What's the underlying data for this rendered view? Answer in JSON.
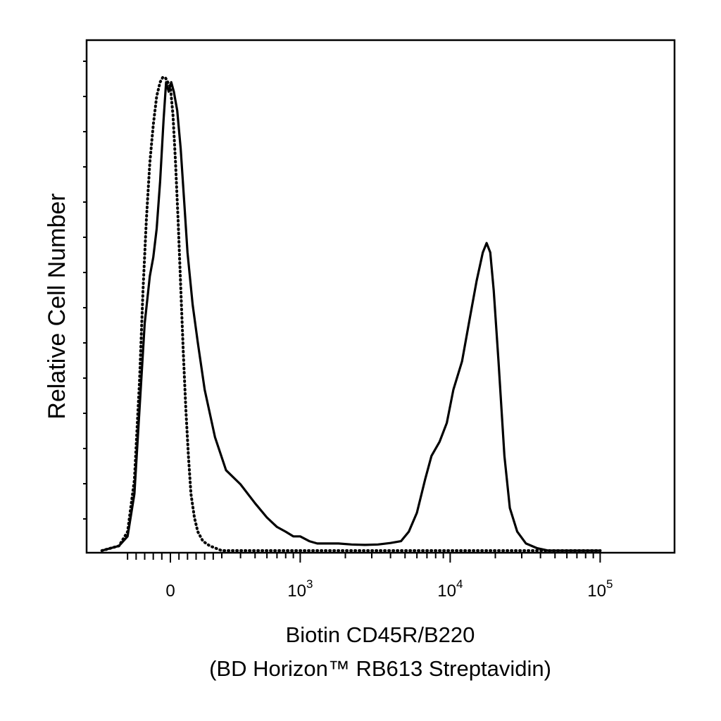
{
  "chart_data": {
    "type": "line",
    "ylabel": "Relative Cell Number",
    "xlabel_line1": "Biotin CD45R/B220",
    "xlabel_line2": "(BD Horizon™ RB613 Streptavidin)",
    "x_scale": "biexponential",
    "x_tick_labels": [
      {
        "base": "0",
        "exp": ""
      },
      {
        "base": "10",
        "exp": "3"
      },
      {
        "base": "10",
        "exp": "4"
      },
      {
        "base": "10",
        "exp": "5"
      }
    ],
    "ylim": [
      0,
      100
    ],
    "grid": false,
    "legend": "none",
    "series": [
      {
        "style": "dashed",
        "points": [
          [
            -400,
            0
          ],
          [
            -300,
            1
          ],
          [
            -250,
            4
          ],
          [
            -210,
            15
          ],
          [
            -180,
            36
          ],
          [
            -160,
            55
          ],
          [
            -140,
            70
          ],
          [
            -120,
            82
          ],
          [
            -100,
            90
          ],
          [
            -80,
            96
          ],
          [
            -60,
            99
          ],
          [
            -45,
            100
          ],
          [
            -30,
            100
          ],
          [
            -15,
            99
          ],
          [
            0,
            98
          ],
          [
            15,
            92
          ],
          [
            30,
            82
          ],
          [
            45,
            70
          ],
          [
            60,
            56
          ],
          [
            75,
            42
          ],
          [
            90,
            30
          ],
          [
            105,
            20
          ],
          [
            120,
            12
          ],
          [
            140,
            7
          ],
          [
            160,
            4
          ],
          [
            190,
            2
          ],
          [
            230,
            1
          ],
          [
            300,
            0
          ],
          [
            100000,
            0
          ]
        ]
      },
      {
        "style": "solid",
        "points": [
          [
            -400,
            0
          ],
          [
            -300,
            1
          ],
          [
            -250,
            3
          ],
          [
            -210,
            12
          ],
          [
            -180,
            30
          ],
          [
            -150,
            48
          ],
          [
            -120,
            58
          ],
          [
            -100,
            62
          ],
          [
            -80,
            68
          ],
          [
            -60,
            78
          ],
          [
            -40,
            91
          ],
          [
            -25,
            99
          ],
          [
            -10,
            97
          ],
          [
            5,
            99
          ],
          [
            20,
            97
          ],
          [
            40,
            93
          ],
          [
            60,
            85
          ],
          [
            80,
            74
          ],
          [
            100,
            63
          ],
          [
            130,
            52
          ],
          [
            160,
            44
          ],
          [
            200,
            34
          ],
          [
            260,
            24
          ],
          [
            320,
            17
          ],
          [
            400,
            14
          ],
          [
            500,
            10
          ],
          [
            600,
            7
          ],
          [
            700,
            5
          ],
          [
            800,
            4
          ],
          [
            900,
            3
          ],
          [
            1000,
            3
          ],
          [
            1150,
            2
          ],
          [
            1300,
            1.5
          ],
          [
            1500,
            1.5
          ],
          [
            1800,
            1.5
          ],
          [
            2200,
            1.3
          ],
          [
            2700,
            1.2
          ],
          [
            3300,
            1.3
          ],
          [
            4000,
            1.6
          ],
          [
            4700,
            2
          ],
          [
            5300,
            4
          ],
          [
            6000,
            8
          ],
          [
            6800,
            15
          ],
          [
            7500,
            20
          ],
          [
            8500,
            23
          ],
          [
            9500,
            27
          ],
          [
            10500,
            34
          ],
          [
            12000,
            40
          ],
          [
            13500,
            49
          ],
          [
            15000,
            57
          ],
          [
            16500,
            63
          ],
          [
            17500,
            65
          ],
          [
            18500,
            63
          ],
          [
            19500,
            55
          ],
          [
            21000,
            40
          ],
          [
            23000,
            20
          ],
          [
            25000,
            9
          ],
          [
            28000,
            4
          ],
          [
            32000,
            1.5
          ],
          [
            38000,
            0.5
          ],
          [
            45000,
            0
          ],
          [
            100000,
            0
          ]
        ]
      }
    ]
  }
}
